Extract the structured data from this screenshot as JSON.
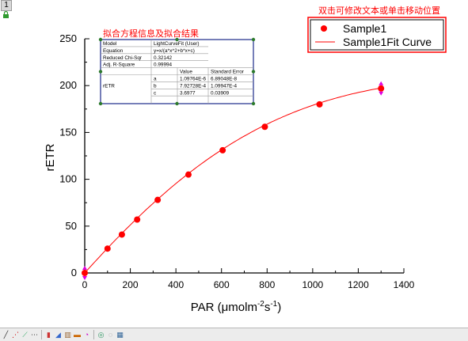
{
  "window": {
    "layer_tab": "1"
  },
  "annotations": {
    "fit_box_note": "拟合方程信息及拟合结果",
    "legend_note": "双击可修改文本或单击移动位置"
  },
  "fit_table": {
    "rows": [
      [
        "Model",
        "LightCurveFit (User)",
        ""
      ],
      [
        "Equation",
        "y=x/(a*x^2+b*x+c)",
        ""
      ],
      [
        "Reduced Chi-Sqr",
        "0.32142",
        ""
      ],
      [
        "Adj. R-Square",
        "0.99994",
        ""
      ]
    ],
    "param_header": [
      "",
      "",
      "Value",
      "Standard Error"
    ],
    "param_group_label": "rETR",
    "params": [
      [
        "a",
        "1.09764E-6",
        "6.89048E-8"
      ],
      [
        "b",
        "7.92728E-4",
        "1.09947E-4"
      ],
      [
        "c",
        "3.6977",
        "0.03909"
      ]
    ]
  },
  "chart_data": {
    "type": "scatter",
    "xlabel_main": "PAR (μmolm",
    "xlabel_sup1": "-2",
    "xlabel_mid": "s",
    "xlabel_sup2": "-1",
    "xlabel_end": ")",
    "ylabel": "rETR",
    "xlim": [
      0,
      1400
    ],
    "ylim": [
      0,
      250
    ],
    "xticks": [
      0,
      200,
      400,
      600,
      800,
      1000,
      1200,
      1400
    ],
    "yticks": [
      0,
      50,
      100,
      150,
      200,
      250
    ],
    "grid": false,
    "legend_placement": "top-right",
    "fit": {
      "a": 1.09764e-06,
      "b": 0.000792728,
      "c": 3.6977
    },
    "series": [
      {
        "name": "Sample1",
        "kind": "scatter",
        "color": "#ff0000",
        "x": [
          0,
          100,
          163,
          230,
          320,
          455,
          605,
          790,
          1030,
          1300
        ],
        "y": [
          0,
          26,
          41,
          57,
          78,
          105,
          131,
          156,
          180,
          197
        ]
      },
      {
        "name": "Sample1Fit Curve",
        "kind": "line",
        "color": "#ff0000"
      }
    ]
  },
  "colors": {
    "annotation_red": "#ff0000",
    "fitbox_border": "#1c2a8a",
    "handle_green": "#2c7a2c",
    "handle_magenta": "#e000e0"
  },
  "toolbar": {
    "icons": [
      "line-tool-icon",
      "scatter-tool-icon",
      "line-symbol-icon",
      "dotted-line-icon",
      "column-icon",
      "area-icon",
      "histogram-icon",
      "bar-icon",
      "pie-icon",
      "contour-icon",
      "polar-icon",
      "template-icon"
    ]
  }
}
